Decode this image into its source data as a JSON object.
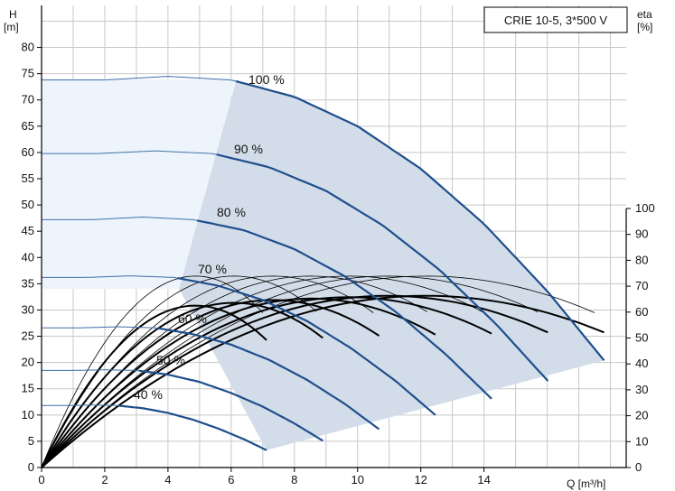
{
  "chart_data": {
    "type": "line",
    "title": "CRIE 10-5, 3*500 V",
    "xlabel": "Q [m³/h]",
    "ylabel_left": [
      "H",
      "[m]"
    ],
    "ylabel_right": [
      "eta",
      "[%]"
    ],
    "xlim": [
      0,
      18.5
    ],
    "ylim": [
      0,
      88
    ],
    "x_ticks": [
      "0",
      "2",
      "4",
      "6",
      "8",
      "10",
      "12",
      "14"
    ],
    "y_left_ticks": [
      "0",
      "5",
      "10",
      "15",
      "20",
      "25",
      "30",
      "35",
      "40",
      "45",
      "50",
      "55",
      "60",
      "65",
      "70",
      "75",
      "80"
    ],
    "y_right_ticks": [
      "0",
      "10",
      "20",
      "30",
      "40",
      "50",
      "60",
      "70",
      "80",
      "90",
      "100"
    ],
    "grid": true,
    "colors": {
      "head_curve": "#1f4e8c",
      "head_curve_thin": "#3d6fa8",
      "operating_area": "#d2dde9",
      "left_area": "#eef4fb",
      "efficiency_curve": "#000000"
    },
    "head_curves": [
      {
        "speed": "100 %",
        "x": [
          0,
          2,
          4,
          6,
          8,
          10,
          12,
          14,
          16,
          17.8
        ],
        "y": [
          73.8,
          73.8,
          74.5,
          73.8,
          70.6,
          65.0,
          56.9,
          46.4,
          33.6,
          20.4
        ],
        "end_x": 6.15
      },
      {
        "speed": "90 %",
        "x": [
          0,
          1.8,
          3.6,
          5.4,
          7.2,
          9.0,
          10.8,
          12.6,
          14.4,
          16.02
        ],
        "y": [
          59.8,
          59.8,
          60.3,
          59.8,
          57.2,
          52.7,
          46.1,
          37.6,
          27.2,
          16.5
        ],
        "end_x": 5.54
      },
      {
        "speed": "80 %",
        "x": [
          0,
          1.6,
          3.2,
          4.8,
          6.4,
          8.0,
          9.6,
          11.2,
          12.8,
          14.24
        ],
        "y": [
          47.2,
          47.2,
          47.7,
          47.2,
          45.2,
          41.6,
          36.4,
          29.7,
          21.5,
          13.1
        ],
        "end_x": 4.92
      },
      {
        "speed": "70 %",
        "x": [
          0,
          1.4,
          2.8,
          4.2,
          5.6,
          7.0,
          8.4,
          9.8,
          11.2,
          12.46
        ],
        "y": [
          36.2,
          36.2,
          36.5,
          36.2,
          34.6,
          31.9,
          27.9,
          22.7,
          16.5,
          10.0
        ],
        "end_x": 4.31
      },
      {
        "speed": "60 %",
        "x": [
          0,
          1.2,
          2.4,
          3.6,
          4.8,
          6.0,
          7.2,
          8.4,
          9.6,
          10.68
        ],
        "y": [
          26.6,
          26.6,
          26.8,
          26.6,
          25.4,
          23.4,
          20.5,
          16.7,
          12.1,
          7.3
        ],
        "end_x": 3.69
      },
      {
        "speed": "50 %",
        "x": [
          0,
          1.0,
          2.0,
          3.0,
          4.0,
          5.0,
          6.0,
          7.0,
          8.0,
          8.9
        ],
        "y": [
          18.5,
          18.5,
          18.6,
          18.5,
          17.7,
          16.3,
          14.2,
          11.6,
          8.4,
          5.1
        ],
        "end_x": 3.08
      },
      {
        "speed": "40 %",
        "x": [
          0,
          0.8,
          1.6,
          2.4,
          3.2,
          4.0,
          4.8,
          5.6,
          6.4,
          7.12
        ],
        "y": [
          11.8,
          11.8,
          11.9,
          11.8,
          11.3,
          10.4,
          9.1,
          7.4,
          5.4,
          3.3
        ],
        "end_x": 2.46
      }
    ],
    "efficiency_curves": [
      {
        "speed": "100 %",
        "bep_x": 11.2,
        "peak": 61,
        "end_x": 17.8,
        "y_note": "eta in %, right axis"
      },
      {
        "speed": "90 %",
        "bep_x": 10.08,
        "peak": 61,
        "end_x": 16.02
      },
      {
        "speed": "80 %",
        "bep_x": 8.96,
        "peak": 60.5,
        "end_x": 14.24
      },
      {
        "speed": "70 %",
        "bep_x": 7.84,
        "peak": 60,
        "end_x": 12.46
      },
      {
        "speed": "60 %",
        "bep_x": 6.72,
        "peak": 59.5,
        "end_x": 10.68
      },
      {
        "speed": "50 %",
        "bep_x": 5.6,
        "peak": 58.5,
        "end_x": 8.9
      },
      {
        "speed": "40 %",
        "bep_x": 4.48,
        "peak": 57.5,
        "end_x": 7.12
      }
    ],
    "efficiency_thin_curves": [
      {
        "bep_x": 11.2,
        "peak": 68,
        "end_x": 17.5
      },
      {
        "bep_x": 10.08,
        "peak": 68,
        "end_x": 15.7
      },
      {
        "bep_x": 8.96,
        "peak": 68,
        "end_x": 14.0
      },
      {
        "bep_x": 7.84,
        "peak": 68,
        "end_x": 12.2
      },
      {
        "bep_x": 6.72,
        "peak": 68,
        "end_x": 10.5
      },
      {
        "bep_x": 5.6,
        "peak": 68,
        "end_x": 8.7
      },
      {
        "bep_x": 4.48,
        "peak": 68,
        "end_x": 7.0
      }
    ]
  }
}
